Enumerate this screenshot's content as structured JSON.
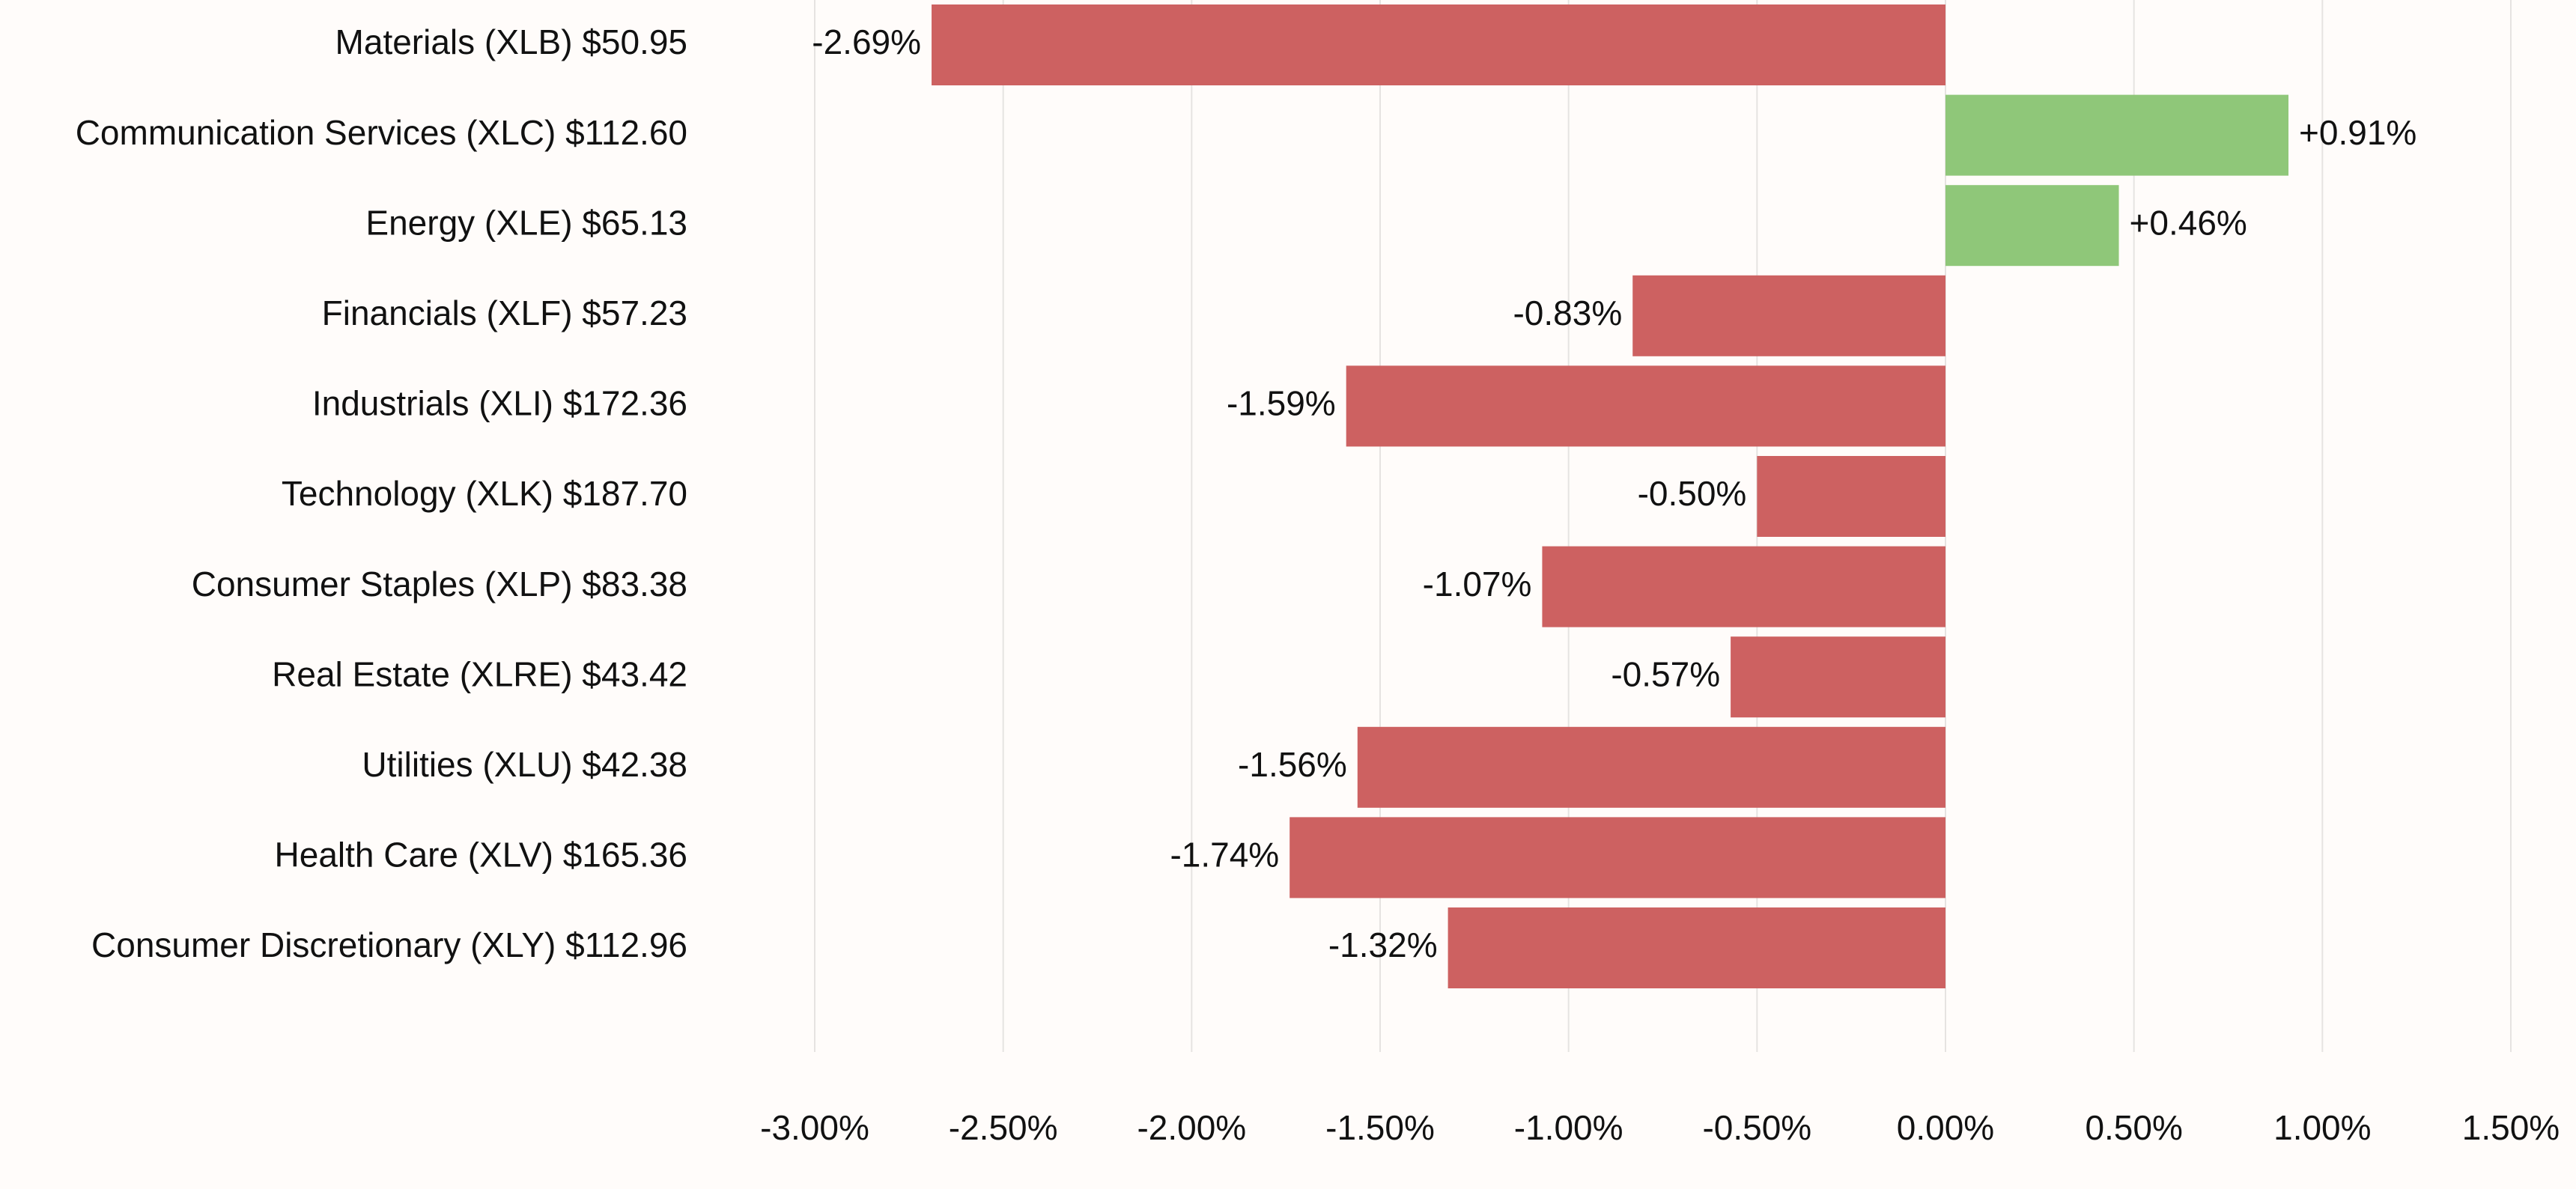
{
  "chart_data": {
    "type": "bar",
    "orientation": "horizontal",
    "categories": [
      "Materials (XLB) $50.95",
      "Communication Services (XLC) $112.60",
      "Energy (XLE) $65.13",
      "Financials (XLF) $57.23",
      "Industrials (XLI) $172.36",
      "Technology (XLK) $187.70",
      "Consumer Staples (XLP) $83.38",
      "Real Estate (XLRE) $43.42",
      "Utilities (XLU) $42.38",
      "Health Care (XLV) $165.36",
      "Consumer Discretionary (XLY) $112.96"
    ],
    "values": [
      -2.69,
      0.91,
      0.46,
      -0.83,
      -1.59,
      -0.5,
      -1.07,
      -0.57,
      -1.56,
      -1.74,
      -1.32
    ],
    "data_labels": [
      "-2.69%",
      "+0.91%",
      "+0.46%",
      "-0.83%",
      "-1.59%",
      "-0.50%",
      "-1.07%",
      "-0.57%",
      "-1.56%",
      "-1.74%",
      "-1.32%"
    ],
    "xlim": [
      -3.0,
      1.5
    ],
    "xticks": [
      -3.0,
      -2.5,
      -2.0,
      -1.5,
      -1.0,
      -0.5,
      0.0,
      0.5,
      1.0,
      1.5
    ],
    "xtick_labels": [
      "-3.00%",
      "-2.50%",
      "-2.00%",
      "-1.50%",
      "-1.00%",
      "-0.50%",
      "0.00%",
      "0.50%",
      "1.00%",
      "1.50%"
    ],
    "grid": "vertical",
    "colors": {
      "positive": "#8fc779",
      "negative": "#cd6161",
      "background": "#fffcfa",
      "grid": "#e6e3e1"
    },
    "title": "",
    "xlabel": "",
    "ylabel": ""
  }
}
